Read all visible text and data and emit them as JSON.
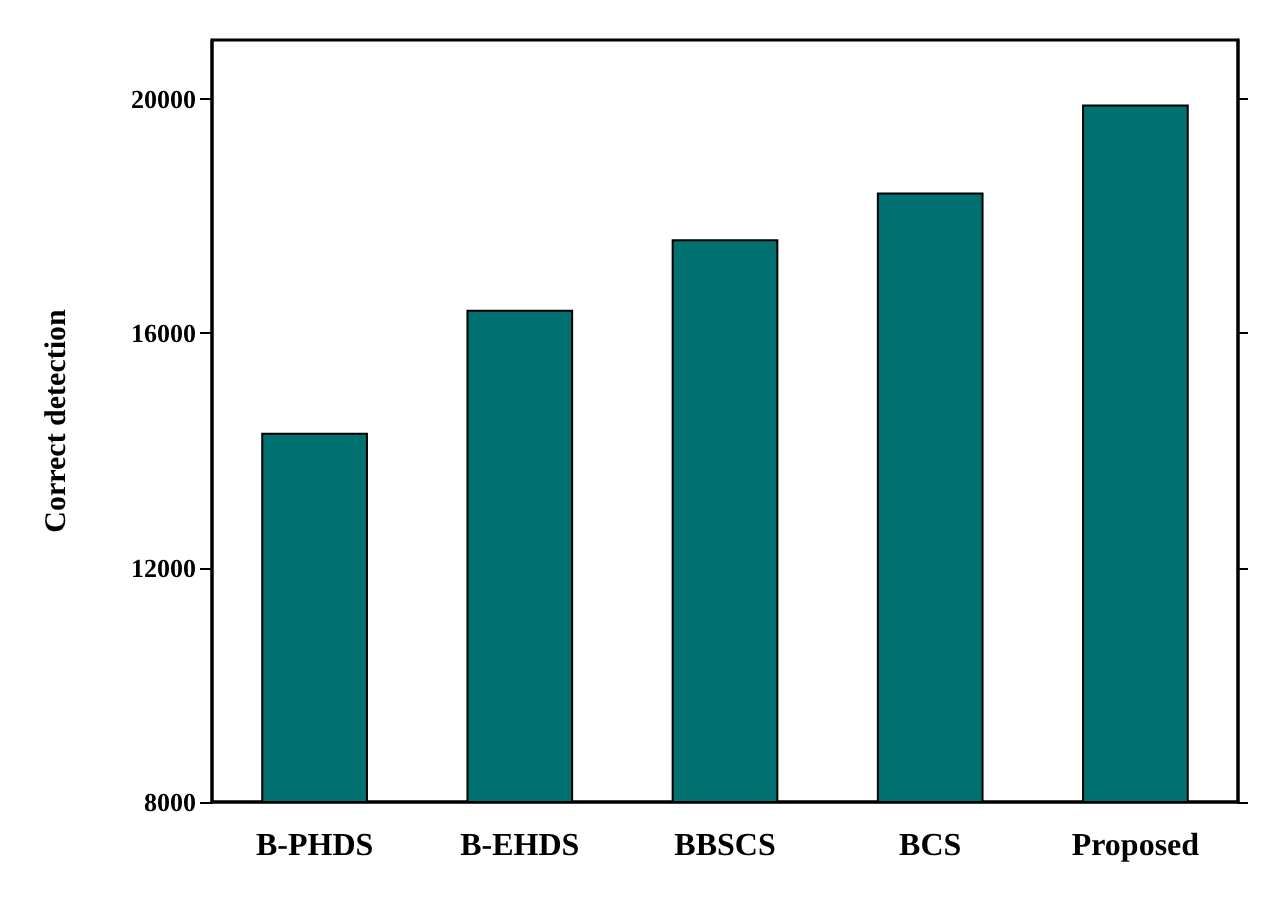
{
  "chart_data": {
    "type": "bar",
    "ylabel": "Correct detection",
    "categories": [
      "B-PHDS",
      "B-EHDS",
      "BBSCS",
      "BCS",
      "Proposed"
    ],
    "values": [
      14300,
      16400,
      17600,
      18400,
      19900
    ],
    "color": "#007070",
    "ylim": [
      8000,
      21000
    ],
    "yticks": [
      8000,
      12000,
      16000,
      20000
    ],
    "grid": false
  }
}
